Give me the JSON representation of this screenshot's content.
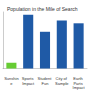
{
  "chart_data": {
    "type": "bar",
    "title": "Population in the Mile of Search",
    "categories": [
      "Sunshine",
      "Sports Impact",
      "Student Fun",
      "City of Sample",
      "Earth Parts Impact"
    ],
    "values": [
      10,
      95,
      65,
      85,
      80
    ],
    "colors": [
      "#66cc33",
      "#1f5aa6",
      "#1f5aa6",
      "#1f5aa6",
      "#1f5aa6"
    ],
    "ylim": [
      0,
      100
    ],
    "grid": false,
    "tick_labels": "x"
  }
}
